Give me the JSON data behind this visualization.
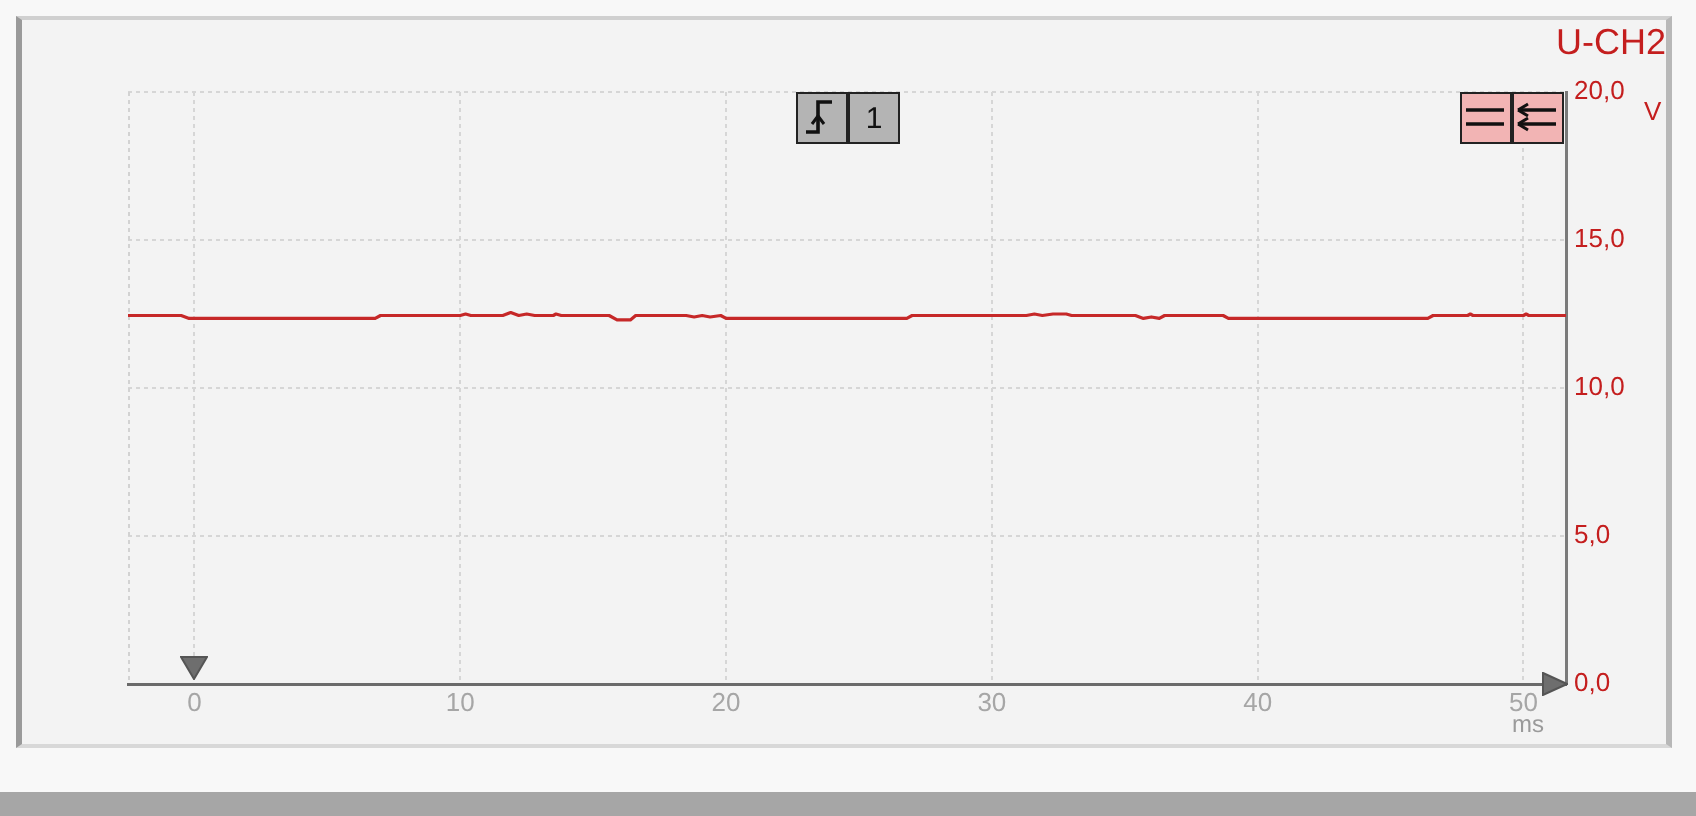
{
  "chart_data": {
    "type": "line",
    "ylabel": "U-CH2",
    "xlabel": "ms",
    "annotations": [
      "V",
      "1"
    ],
    "x": [
      -2.5,
      -0.5,
      -0.2,
      6.8,
      7.0,
      10.0,
      10.2,
      10.4,
      11.6,
      11.9,
      12.2,
      12.5,
      12.8,
      13.5,
      13.6,
      13.8,
      15.6,
      15.9,
      16.4,
      16.6,
      18.5,
      18.8,
      19.1,
      19.4,
      19.8,
      20.0,
      26.8,
      27.0,
      31.3,
      31.6,
      31.9,
      32.3,
      32.8,
      33.0,
      35.4,
      35.7,
      36.0,
      36.3,
      36.5,
      38.7,
      38.9,
      46.4,
      46.6,
      47.9,
      48.0,
      48.1,
      50.0,
      50.1,
      50.2,
      51.6
    ],
    "series": [
      {
        "color": "#c62828",
        "values": [
          12.45,
          12.45,
          12.35,
          12.35,
          12.45,
          12.45,
          12.5,
          12.45,
          12.45,
          12.55,
          12.45,
          12.5,
          12.45,
          12.45,
          12.5,
          12.45,
          12.45,
          12.3,
          12.3,
          12.45,
          12.45,
          12.4,
          12.45,
          12.4,
          12.45,
          12.35,
          12.35,
          12.45,
          12.45,
          12.5,
          12.45,
          12.5,
          12.5,
          12.45,
          12.45,
          12.35,
          12.4,
          12.35,
          12.45,
          12.45,
          12.35,
          12.35,
          12.45,
          12.45,
          12.5,
          12.45,
          12.45,
          12.5,
          12.45,
          12.45
        ]
      }
    ],
    "xlim": [
      -2.5,
      51.6
    ],
    "ylim": [
      0,
      20
    ],
    "xticks": [
      0,
      10,
      20,
      30,
      40,
      50
    ],
    "yticks": [
      {
        "value": 0,
        "label": "0,0"
      },
      {
        "value": 5,
        "label": "5,0"
      },
      {
        "value": 10,
        "label": "10,0"
      },
      {
        "value": 15,
        "label": "15,0"
      },
      {
        "value": 20,
        "label": "20,0"
      }
    ],
    "grid": true
  }
}
